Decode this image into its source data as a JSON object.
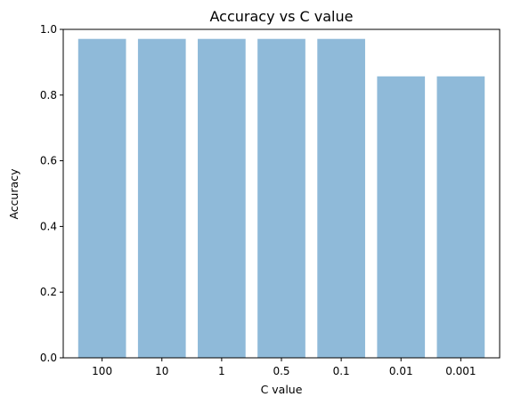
{
  "chart_data": {
    "type": "bar",
    "title": "Accuracy vs C value",
    "xlabel": "C value",
    "ylabel": "Accuracy",
    "categories": [
      "100",
      "10",
      "1",
      "0.5",
      "0.1",
      "0.01",
      "0.001"
    ],
    "values": [
      0.971,
      0.971,
      0.971,
      0.971,
      0.971,
      0.857,
      0.857
    ],
    "ylim": [
      0,
      1.0
    ],
    "yticks": [
      "0.0",
      "0.2",
      "0.4",
      "0.6",
      "0.8",
      "1.0"
    ],
    "grid": false,
    "bar_color": "#8fbad9"
  }
}
